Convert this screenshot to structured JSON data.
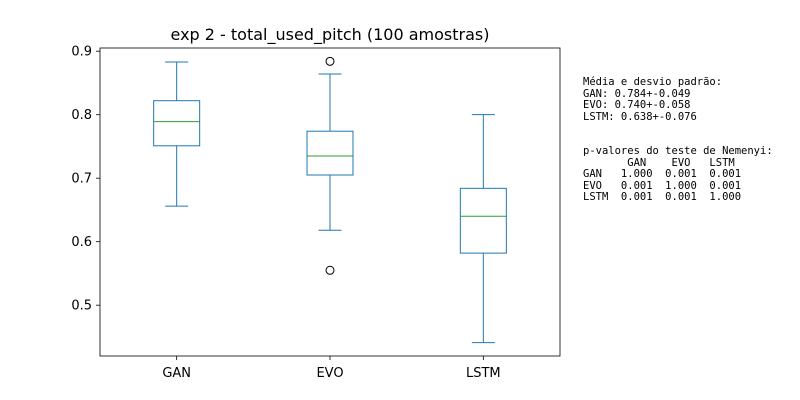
{
  "chart_data": {
    "type": "box",
    "title": "exp 2 - total_used_pitch (100 amostras)",
    "xlabel": "",
    "ylabel": "",
    "ylim": [
      0.42,
      0.905
    ],
    "yticks": [
      "0.5",
      "0.6",
      "0.7",
      "0.8",
      "0.9"
    ],
    "grid": false,
    "categories": [
      "GAN",
      "EVO",
      "LSTM"
    ],
    "boxes": [
      {
        "name": "GAN",
        "whisker_low": 0.656,
        "q1": 0.751,
        "median": 0.789,
        "q3": 0.822,
        "whisker_high": 0.883,
        "outliers": []
      },
      {
        "name": "EVO",
        "whisker_low": 0.618,
        "q1": 0.705,
        "median": 0.735,
        "q3": 0.774,
        "whisker_high": 0.864,
        "outliers": [
          0.884,
          0.555
        ]
      },
      {
        "name": "LSTM",
        "whisker_low": 0.441,
        "q1": 0.582,
        "median": 0.64,
        "q3": 0.684,
        "whisker_high": 0.8,
        "outliers": []
      }
    ],
    "box_color": "#1f77b4",
    "median_color": "#2ca02c"
  },
  "annotations": {
    "stats_lines": [
      "Média e desvio padrão:",
      "GAN: 0.784+-0.049",
      "EVO: 0.740+-0.058",
      "LSTM: 0.638+-0.076"
    ],
    "nemenyi_lines": [
      "p-valores do teste de Nemenyi:",
      "       GAN    EVO   LSTM",
      "GAN   1.000  0.001  0.001",
      "EVO   0.001  1.000  0.001",
      "LSTM  0.001  0.001  1.000"
    ]
  }
}
